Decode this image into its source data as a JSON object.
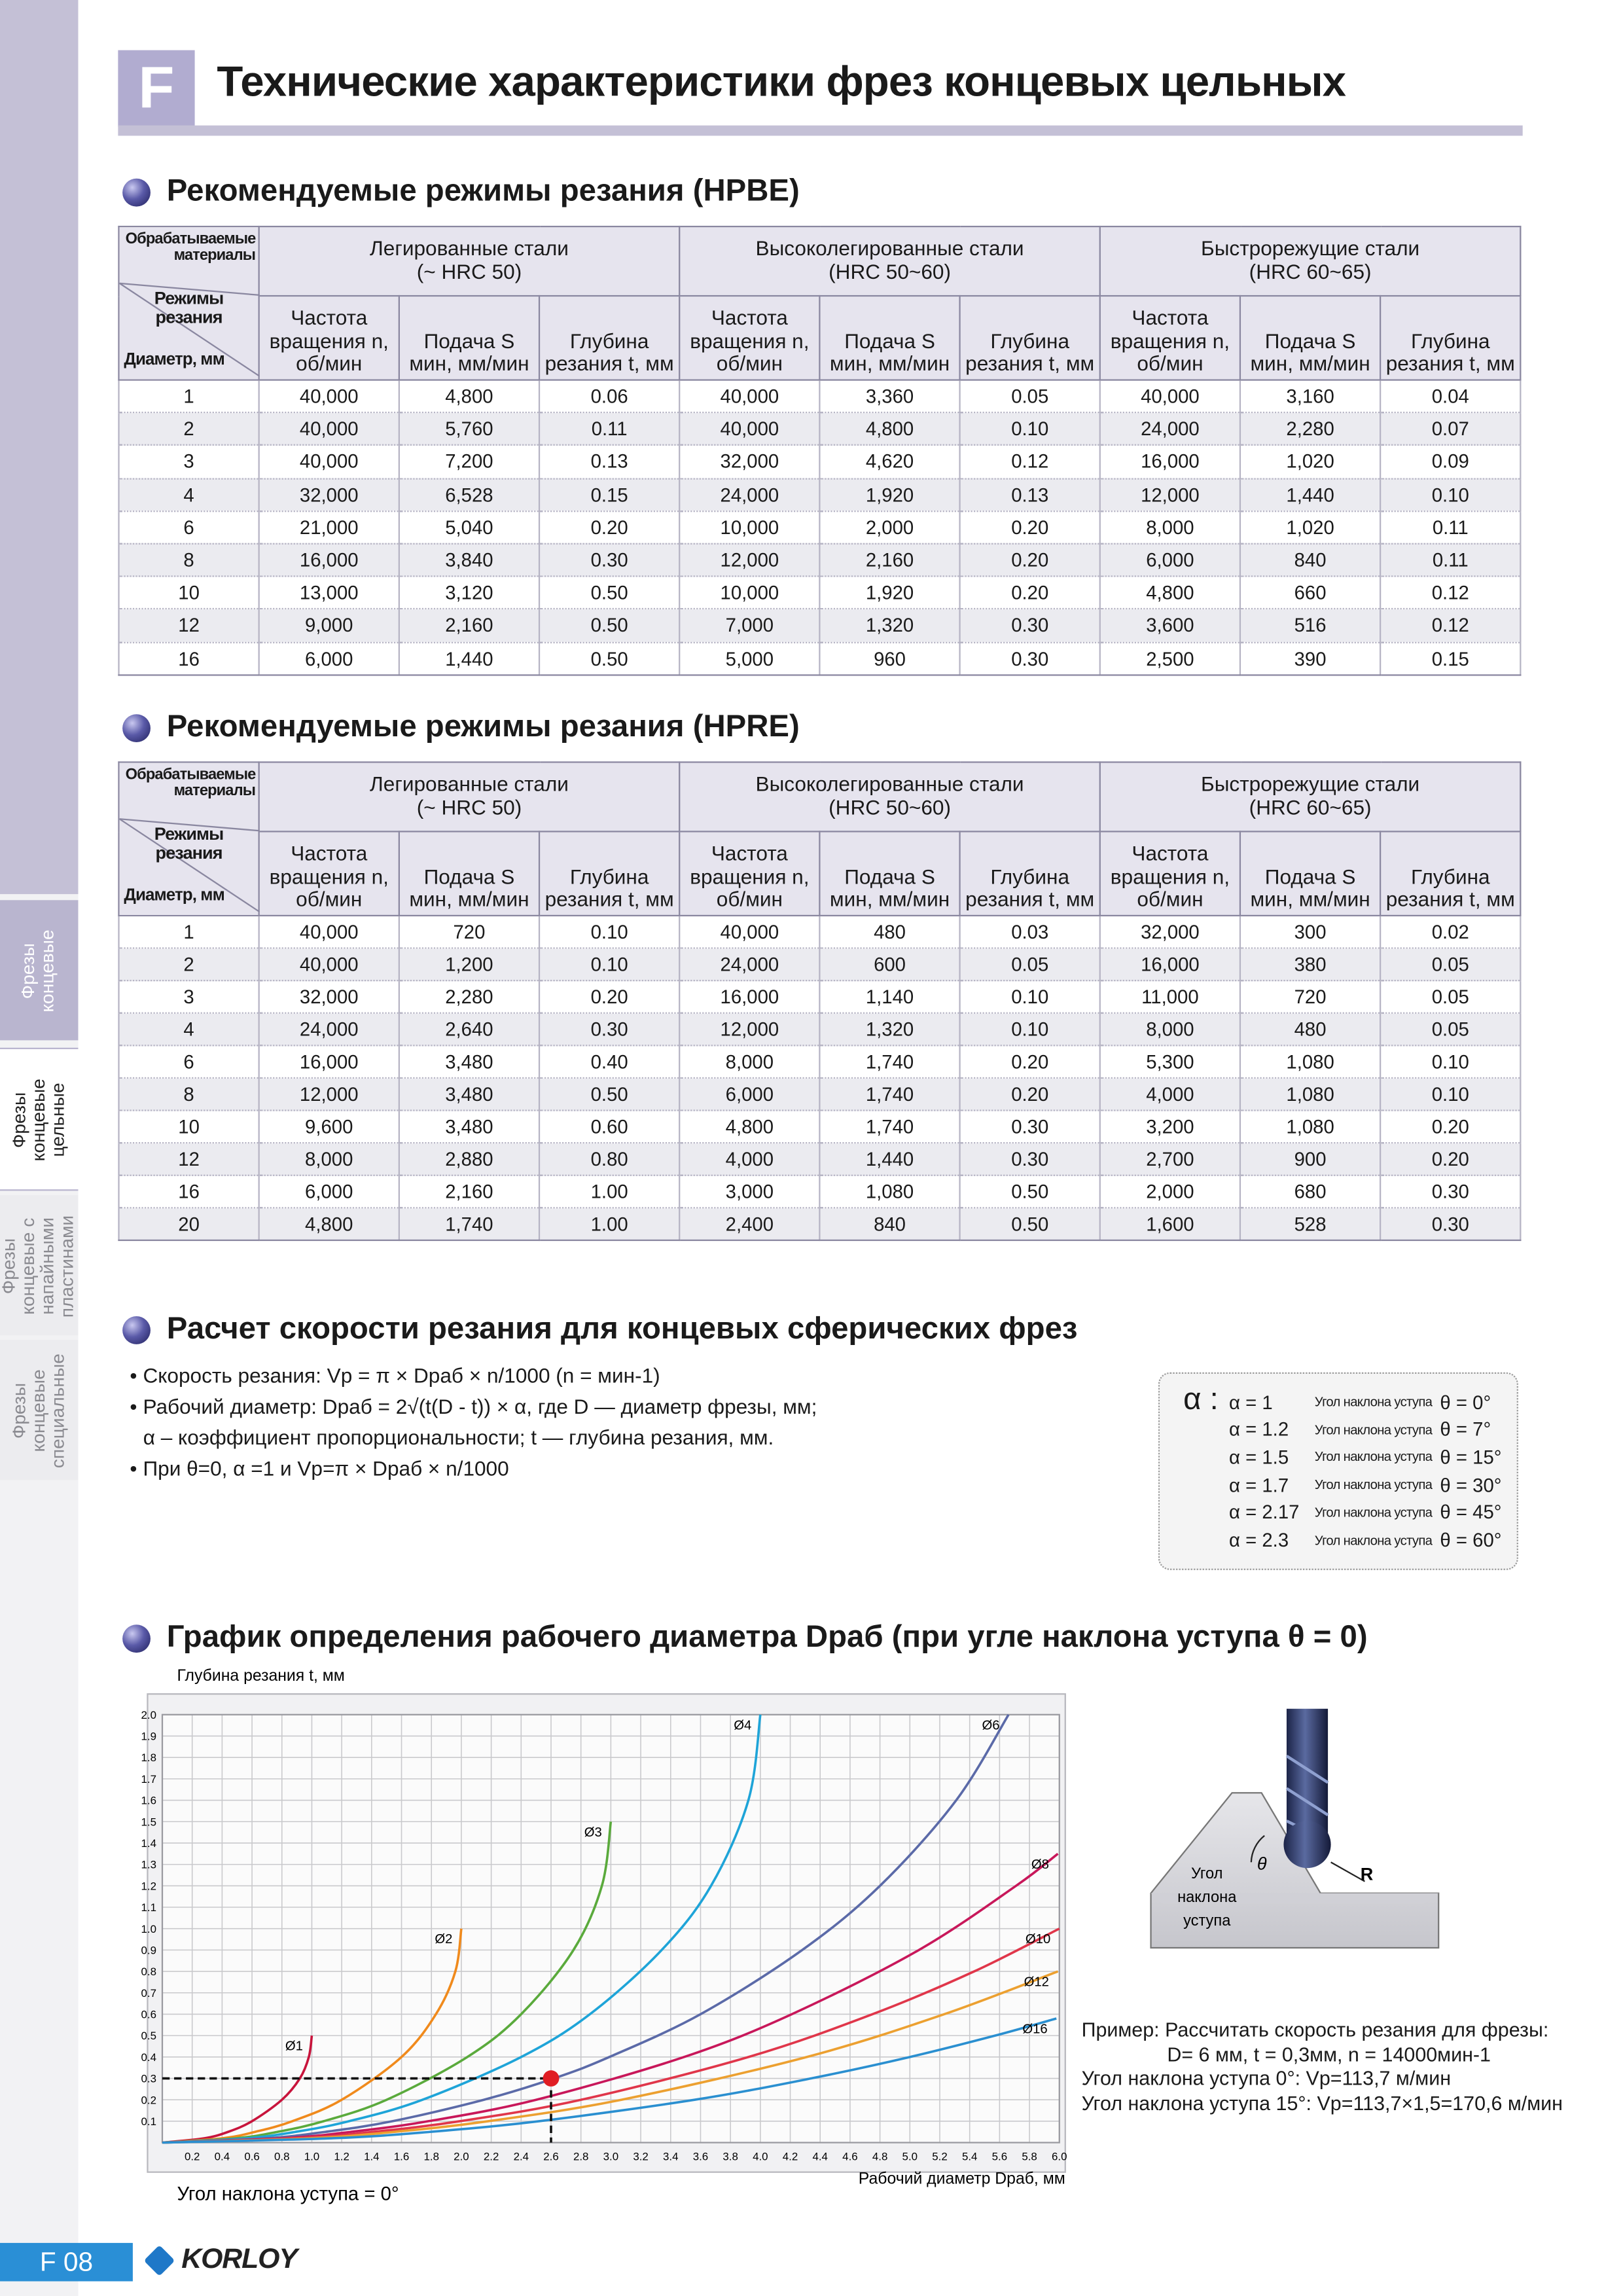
{
  "header": {
    "letter": "F",
    "title": "Технические характеристики фрез концевых цельных"
  },
  "sidebar": {
    "tabs": [
      "Фрезы концевые",
      "Фрезы концевые цельные",
      "Фрезы концевые с напайными пластинами",
      "Фрезы концевые специальные"
    ]
  },
  "tables": [
    {
      "title": "Рекомендуемые режимы резания (HPBE)",
      "corner": {
        "materials": "Обрабатываемые материалы",
        "modes": "Режимы резания",
        "diameter": "Диаметр, мм"
      },
      "groups": [
        {
          "name": "Легированные стали",
          "hardness": "(~ HRC 50)"
        },
        {
          "name": "Высоколегированные стали",
          "hardness": "(HRC 50~60)"
        },
        {
          "name": "Быстрорежущие стали",
          "hardness": "(HRC 60~65)"
        }
      ],
      "columns": [
        "Частота вращения n, об/мин",
        "Подача S мин, мм/мин",
        "Глубина резания t, мм"
      ],
      "rows": [
        [
          "1",
          "40,000",
          "4,800",
          "0.06",
          "40,000",
          "3,360",
          "0.05",
          "40,000",
          "3,160",
          "0.04"
        ],
        [
          "2",
          "40,000",
          "5,760",
          "0.11",
          "40,000",
          "4,800",
          "0.10",
          "24,000",
          "2,280",
          "0.07"
        ],
        [
          "3",
          "40,000",
          "7,200",
          "0.13",
          "32,000",
          "4,620",
          "0.12",
          "16,000",
          "1,020",
          "0.09"
        ],
        [
          "4",
          "32,000",
          "6,528",
          "0.15",
          "24,000",
          "1,920",
          "0.13",
          "12,000",
          "1,440",
          "0.10"
        ],
        [
          "6",
          "21,000",
          "5,040",
          "0.20",
          "10,000",
          "2,000",
          "0.20",
          "8,000",
          "1,020",
          "0.11"
        ],
        [
          "8",
          "16,000",
          "3,840",
          "0.30",
          "12,000",
          "2,160",
          "0.20",
          "6,000",
          "840",
          "0.11"
        ],
        [
          "10",
          "13,000",
          "3,120",
          "0.50",
          "10,000",
          "1,920",
          "0.20",
          "4,800",
          "660",
          "0.12"
        ],
        [
          "12",
          "9,000",
          "2,160",
          "0.50",
          "7,000",
          "1,320",
          "0.30",
          "3,600",
          "516",
          "0.12"
        ],
        [
          "16",
          "6,000",
          "1,440",
          "0.50",
          "5,000",
          "960",
          "0.30",
          "2,500",
          "390",
          "0.15"
        ]
      ]
    },
    {
      "title": "Рекомендуемые режимы резания (HPRE)",
      "corner": {
        "materials": "Обрабатываемые материалы",
        "modes": "Режимы резания",
        "diameter": "Диаметр, мм"
      },
      "groups": [
        {
          "name": "Легированные стали",
          "hardness": "(~ HRC 50)"
        },
        {
          "name": "Высоколегированные стали",
          "hardness": "(HRC 50~60)"
        },
        {
          "name": "Быстрорежущие стали",
          "hardness": "(HRC 60~65)"
        }
      ],
      "columns": [
        "Частота вращения n, об/мин",
        "Подача S мин, мм/мин",
        "Глубина резания t, мм"
      ],
      "rows": [
        [
          "1",
          "40,000",
          "720",
          "0.10",
          "40,000",
          "480",
          "0.03",
          "32,000",
          "300",
          "0.02"
        ],
        [
          "2",
          "40,000",
          "1,200",
          "0.10",
          "24,000",
          "600",
          "0.05",
          "16,000",
          "380",
          "0.05"
        ],
        [
          "3",
          "32,000",
          "2,280",
          "0.20",
          "16,000",
          "1,140",
          "0.10",
          "11,000",
          "720",
          "0.05"
        ],
        [
          "4",
          "24,000",
          "2,640",
          "0.30",
          "12,000",
          "1,320",
          "0.10",
          "8,000",
          "480",
          "0.05"
        ],
        [
          "6",
          "16,000",
          "3,480",
          "0.40",
          "8,000",
          "1,740",
          "0.20",
          "5,300",
          "1,080",
          "0.10"
        ],
        [
          "8",
          "12,000",
          "3,480",
          "0.50",
          "6,000",
          "1,740",
          "0.20",
          "4,000",
          "1,080",
          "0.10"
        ],
        [
          "10",
          "9,600",
          "3,480",
          "0.60",
          "4,800",
          "1,740",
          "0.30",
          "3,200",
          "1,080",
          "0.20"
        ],
        [
          "12",
          "8,000",
          "2,880",
          "0.80",
          "4,000",
          "1,440",
          "0.30",
          "2,700",
          "900",
          "0.20"
        ],
        [
          "16",
          "6,000",
          "2,160",
          "1.00",
          "3,000",
          "1,080",
          "0.50",
          "2,000",
          "680",
          "0.30"
        ],
        [
          "20",
          "4,800",
          "1,740",
          "1.00",
          "2,400",
          "840",
          "0.50",
          "1,600",
          "528",
          "0.30"
        ]
      ]
    }
  ],
  "calc": {
    "title": "Расчет скорости резания для концевых сферических фрез",
    "bullets": [
      [
        "Скорость резания: Vp = π × Dраб × n/1000 (n = мин-1)"
      ],
      [
        "Рабочий диаметр: Dраб = 2√(t(D - t)) × α, где  D — диаметр фрезы, мм;",
        "α – коэффициент пропорциональности; t — глубина резания, мм."
      ],
      [
        "При θ=0,  α =1 и Vp=π × Dраб × n/1000"
      ]
    ],
    "alpha_symbol": "α :",
    "alpha_rows": [
      [
        "α = 1",
        "Угол наклона уступа",
        "θ = 0°"
      ],
      [
        "α = 1.2",
        "Угол наклона уступа",
        "θ = 7°"
      ],
      [
        "α = 1.5",
        "Угол наклона уступа",
        "θ = 15°"
      ],
      [
        "α = 1.7",
        "Угол наклона уступа",
        "θ = 30°"
      ],
      [
        "α = 2.17",
        "Угол наклона уступа",
        "θ = 45°"
      ],
      [
        "α = 2.3",
        "Угол наклона уступа",
        "θ = 60°"
      ]
    ]
  },
  "chart_data": {
    "type": "line",
    "title": "График определения рабочего диаметра Dраб (при угле наклона уступа θ = 0)",
    "y_label": "Глубина резания t, мм",
    "x_label": "Рабочий диаметр Dраб, мм",
    "note": "Угол наклона уступа  = 0°",
    "xlim": [
      0,
      6
    ],
    "ylim": [
      0,
      2
    ],
    "xticks": [
      0.2,
      0.4,
      0.6,
      0.8,
      {
        "value": 1,
        "label": "1.0"
      },
      1.2,
      1.4,
      1.6,
      1.8,
      {
        "value": 2,
        "label": "2.0"
      },
      2.2,
      2.4,
      2.6,
      2.8,
      {
        "value": 3,
        "label": "3.0"
      },
      3.2,
      3.4,
      3.6,
      3.8,
      {
        "value": 4,
        "label": "4.0"
      },
      4.2,
      4.4,
      4.6,
      4.8,
      {
        "value": 5,
        "label": "5.0"
      },
      5.2,
      5.4,
      5.6,
      5.8,
      {
        "value": 6,
        "label": "6.0"
      }
    ],
    "yticks": [
      0.1,
      0.2,
      0.3,
      0.4,
      0.5,
      0.6,
      0.7,
      0.8,
      0.9,
      {
        "value": 1,
        "label": "1.0"
      },
      1.1,
      1.2,
      1.3,
      1.4,
      1.5,
      1.6,
      1.7,
      1.8,
      1.9,
      {
        "value": 2,
        "label": "2.0"
      }
    ],
    "grid": true,
    "series": [
      {
        "name": "Ø1",
        "color": "#c8143c",
        "x": [
          0,
          0.28,
          0.44,
          0.6,
          0.8,
          0.92,
          0.98,
          1.0
        ],
        "y": [
          0,
          0.02,
          0.05,
          0.1,
          0.2,
          0.3,
          0.4,
          0.5
        ]
      },
      {
        "name": "Ø2",
        "color": "#f08a1c",
        "x": [
          0,
          0.4,
          0.62,
          0.87,
          1.2,
          1.6,
          1.83,
          1.96,
          2.0
        ],
        "y": [
          0,
          0.02,
          0.05,
          0.1,
          0.2,
          0.4,
          0.6,
          0.8,
          1.0
        ]
      },
      {
        "name": "Ø3",
        "color": "#5aaa3c",
        "x": [
          0,
          0.49,
          0.77,
          1.08,
          1.5,
          2.04,
          2.4,
          2.75,
          2.94,
          3.0
        ],
        "y": [
          0,
          0.02,
          0.05,
          0.1,
          0.2,
          0.4,
          0.6,
          0.9,
          1.2,
          1.5
        ]
      },
      {
        "name": "Ø4",
        "color": "#1ea4d8",
        "x": [
          0,
          0.56,
          0.89,
          1.25,
          1.74,
          2.4,
          2.86,
          3.34,
          3.67,
          3.92,
          4.0
        ],
        "y": [
          0,
          0.02,
          0.05,
          0.1,
          0.2,
          0.4,
          0.6,
          0.9,
          1.2,
          1.6,
          2.0
        ]
      },
      {
        "name": "Ø6",
        "color": "#5b6aa8",
        "x": [
          0,
          0.69,
          1.09,
          1.54,
          2.15,
          2.62,
          2.99,
          3.6,
          4.28,
          4.8,
          5.31,
          5.66
        ],
        "y": [
          0,
          0.02,
          0.05,
          0.1,
          0.2,
          0.3,
          0.4,
          0.6,
          0.9,
          1.2,
          1.6,
          2.0
        ]
      },
      {
        "name": "Ø8",
        "color": "#c8175a",
        "x": [
          0,
          0.8,
          1.26,
          1.78,
          2.5,
          3.49,
          4.21,
          5.06,
          5.71,
          5.99
        ],
        "y": [
          0,
          0.02,
          0.05,
          0.1,
          0.2,
          0.4,
          0.6,
          0.9,
          1.2,
          1.35
        ]
      },
      {
        "name": "Ø10",
        "color": "#e0364a",
        "x": [
          0,
          0.89,
          1.41,
          1.99,
          2.8,
          3.92,
          4.75,
          5.43,
          6.0
        ],
        "y": [
          0,
          0.02,
          0.05,
          0.1,
          0.2,
          0.4,
          0.6,
          0.8,
          1.0
        ]
      },
      {
        "name": "Ø12",
        "color": "#eca030",
        "x": [
          0,
          0.98,
          1.55,
          2.18,
          3.07,
          4.31,
          5.23,
          5.99
        ],
        "y": [
          0,
          0.02,
          0.05,
          0.1,
          0.2,
          0.4,
          0.6,
          0.8
        ]
      },
      {
        "name": "Ø16",
        "color": "#2a8fd0",
        "x": [
          0,
          1.13,
          1.79,
          2.52,
          3.56,
          4.34,
          5.0,
          5.57,
          5.98
        ],
        "y": [
          0,
          0.02,
          0.05,
          0.1,
          0.2,
          0.3,
          0.4,
          0.5,
          0.58
        ]
      }
    ],
    "highlight": {
      "x": 2.6,
      "y": 0.3,
      "color": "#e01e24"
    }
  },
  "illustration": {
    "angle_label": "Угол наклона уступа",
    "theta": "θ",
    "radius": "R"
  },
  "example": [
    "Пример: Рассчитать скорость резания для фрезы:",
    "D= 6 мм, t = 0,3мм, n = 14000мин-1",
    "Угол наклона уступа 0°:  Vp=113,7 м/мин",
    "Угол наклона уступа 15°: Vp=113,7×1,5=170,6 м/мин"
  ],
  "footer": {
    "page": "F 08",
    "logo": "KORLOY"
  }
}
